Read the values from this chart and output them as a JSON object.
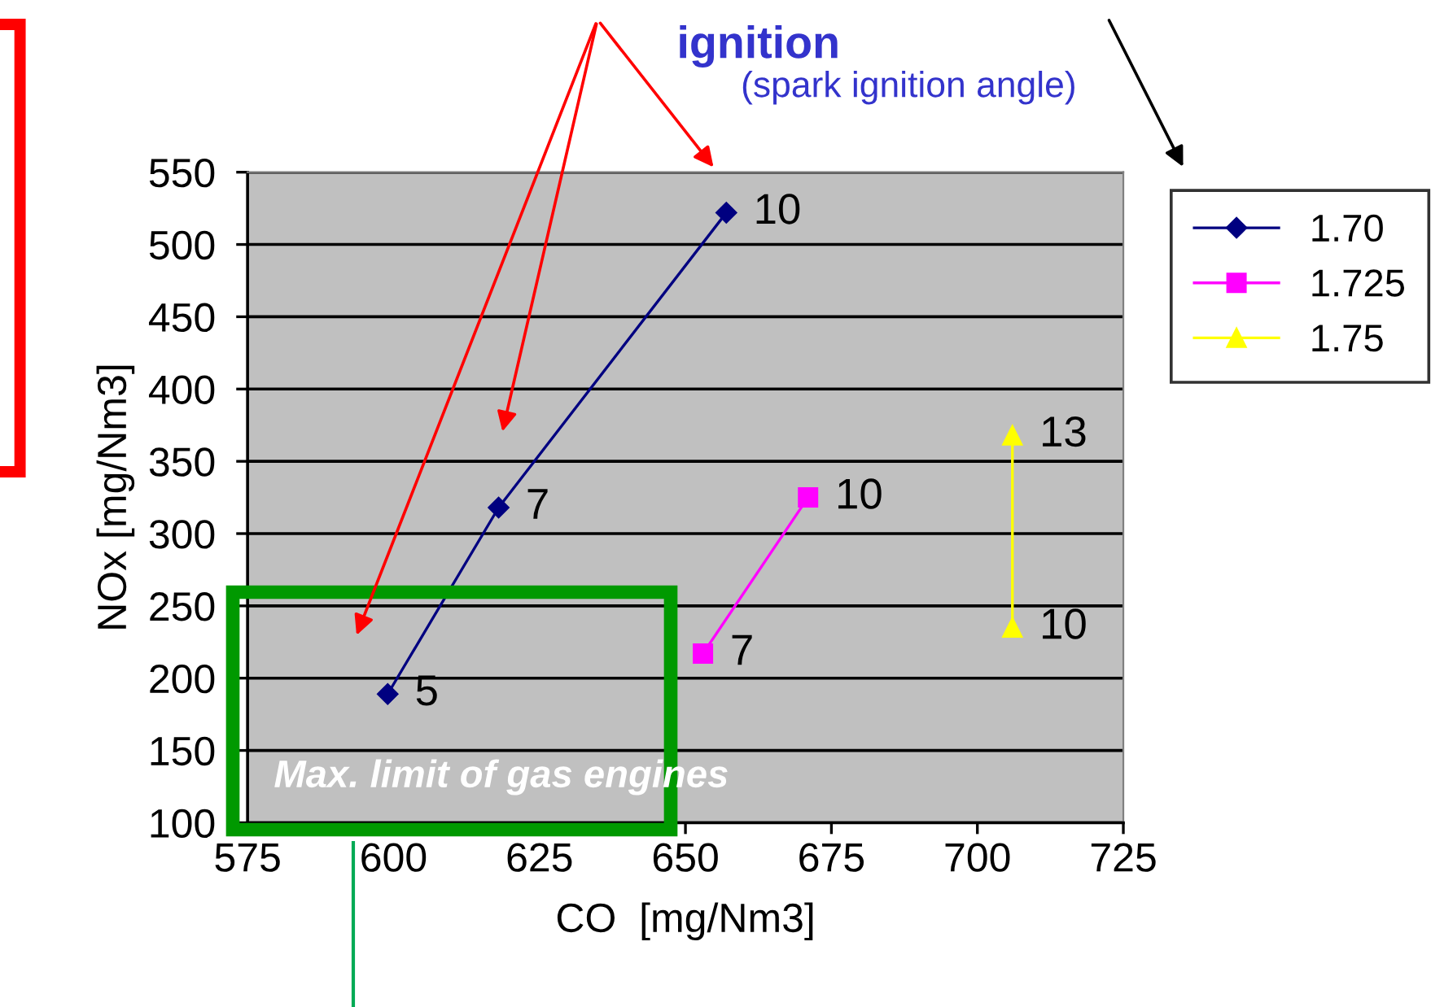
{
  "chart_data": {
    "type": "line",
    "xlabel": "CO  [mg/Nm3]",
    "ylabel": "NOx [mg/Nm3]",
    "series": [
      {
        "name": "1.70",
        "color": "#000080",
        "marker": "diamond",
        "x": [
          599,
          618,
          657
        ],
        "values": [
          189,
          318,
          522
        ]
      },
      {
        "name": "1.725",
        "color": "#ff00ff",
        "marker": "square",
        "x": [
          653,
          671
        ],
        "values": [
          217,
          325
        ]
      },
      {
        "name": "1.75",
        "color": "#ffff00",
        "marker": "triangle",
        "x": [
          706,
          706
        ],
        "values": [
          235,
          368
        ]
      }
    ],
    "xlim": [
      575,
      725
    ],
    "xticks": [
      575,
      600,
      625,
      650,
      675,
      700,
      725
    ],
    "ylim": [
      100,
      550
    ],
    "yticks": [
      100,
      150,
      200,
      250,
      300,
      350,
      400,
      450,
      500,
      550
    ],
    "grid": "y",
    "legend": "right",
    "annotations": [
      "ignition",
      "(spark ignition angle)",
      "Max. limit of gas engines",
      {
        "text": "5",
        "x": 599,
        "y": 189
      },
      {
        "text": "7",
        "x": 618,
        "y": 318
      },
      {
        "text": "10",
        "x": 657,
        "y": 522
      },
      {
        "text": "7",
        "x": 653,
        "y": 217
      },
      {
        "text": "10",
        "x": 671,
        "y": 325
      },
      {
        "text": "10",
        "x": 706,
        "y": 235
      },
      {
        "text": "13",
        "x": 706,
        "y": 368
      }
    ]
  }
}
